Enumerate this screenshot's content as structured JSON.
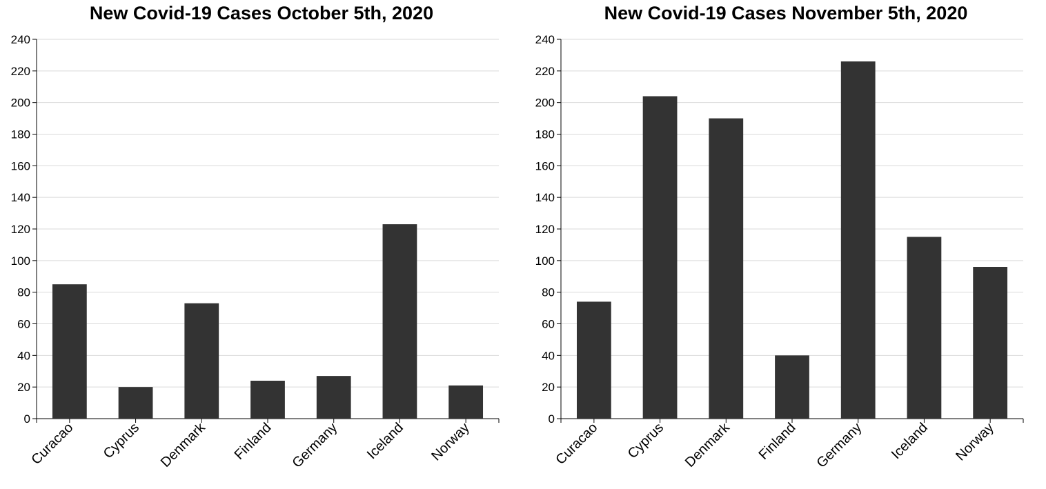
{
  "chart_data": [
    {
      "type": "bar",
      "title": "New Covid-19 Cases October 5th, 2020",
      "categories": [
        "Curacao",
        "Cyprus",
        "Denmark",
        "Finland",
        "Germany",
        "Iceland",
        "Norway"
      ],
      "values": [
        85,
        20,
        73,
        24,
        27,
        123,
        21
      ],
      "ylim": [
        0,
        240
      ],
      "yticks": [
        0,
        20,
        40,
        60,
        80,
        100,
        120,
        140,
        160,
        180,
        200,
        220,
        240
      ],
      "grid": true,
      "bar_color": "#333333"
    },
    {
      "type": "bar",
      "title": "New Covid-19 Cases November 5th, 2020",
      "categories": [
        "Curacao",
        "Cyprus",
        "Denmark",
        "Finland",
        "Germany",
        "Iceland",
        "Norway"
      ],
      "values": [
        74,
        204,
        190,
        40,
        226,
        115,
        96
      ],
      "ylim": [
        0,
        240
      ],
      "yticks": [
        0,
        20,
        40,
        60,
        80,
        100,
        120,
        140,
        160,
        180,
        200,
        220,
        240
      ],
      "grid": true,
      "bar_color": "#333333"
    }
  ]
}
